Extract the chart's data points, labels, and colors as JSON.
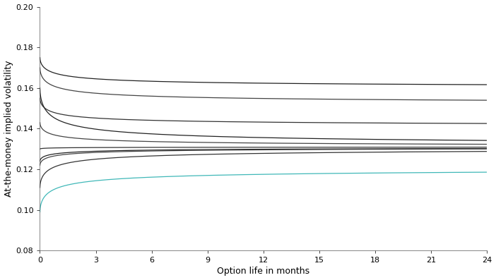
{
  "title": "",
  "xlabel": "Option life in months",
  "ylabel": "At-the-money implied volatility",
  "xlim": [
    0,
    24
  ],
  "ylim": [
    0.08,
    0.2
  ],
  "xticks": [
    0,
    3,
    6,
    9,
    12,
    15,
    18,
    21,
    24
  ],
  "yticks": [
    0.08,
    0.1,
    0.12,
    0.14,
    0.16,
    0.18,
    0.2
  ],
  "d": 0.4,
  "n_months": 24,
  "n_points": 2000,
  "curves": [
    {
      "sigma0": 0.175,
      "sigma_inf": 0.16,
      "color": "#222222",
      "lw": 0.9
    },
    {
      "sigma0": 0.17,
      "sigma_inf": 0.152,
      "color": "#444444",
      "lw": 0.9
    },
    {
      "sigma0": 0.155,
      "sigma_inf": 0.141,
      "color": "#333333",
      "lw": 0.9
    },
    {
      "sigma0": 0.16,
      "sigma_inf": 0.131,
      "color": "#222222",
      "lw": 0.9
    },
    {
      "sigma0": 0.143,
      "sigma_inf": 0.131,
      "color": "#444444",
      "lw": 0.9
    },
    {
      "sigma0": 0.13,
      "sigma_inf": 0.131,
      "color": "#333333",
      "lw": 0.9
    },
    {
      "sigma0": 0.124,
      "sigma_inf": 0.131,
      "color": "#222222",
      "lw": 0.9
    },
    {
      "sigma0": 0.122,
      "sigma_inf": 0.131,
      "color": "#444444",
      "lw": 0.9
    },
    {
      "sigma0": 0.111,
      "sigma_inf": 0.131,
      "color": "#333333",
      "lw": 0.9
    },
    {
      "sigma0": 0.099,
      "sigma_inf": 0.121,
      "color": "#40b8b8",
      "lw": 0.9
    }
  ],
  "background_color": "#ffffff",
  "tick_fontsize": 8,
  "label_fontsize": 9,
  "alpha_speed": 1.2
}
